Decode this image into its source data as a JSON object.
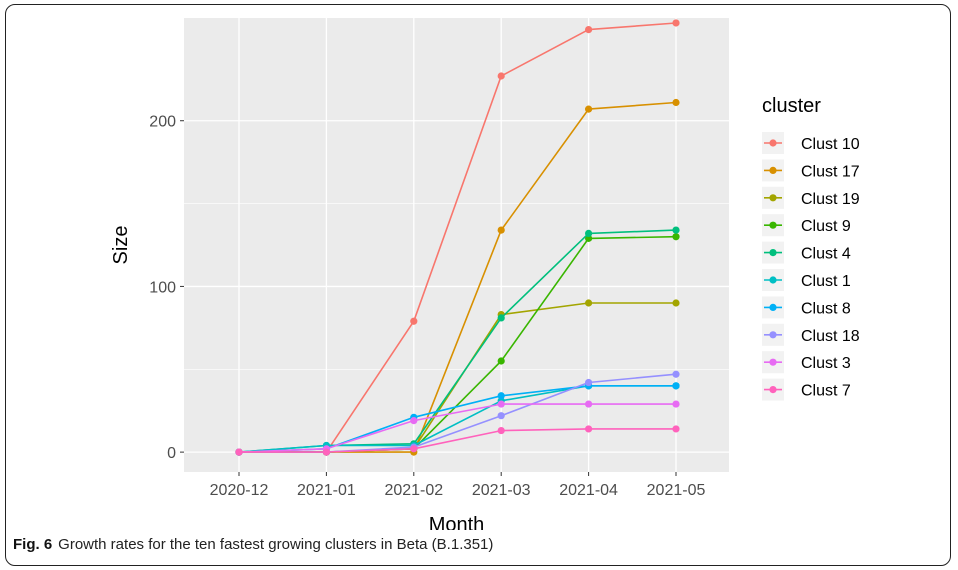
{
  "caption": {
    "label": "Fig. 6",
    "text": "Growth rates for the ten fastest growing clusters in Beta (B.1.351)"
  },
  "chart_data": {
    "type": "line",
    "title": "",
    "xlabel": "Month",
    "ylabel": "Size",
    "x": [
      "2020-12",
      "2021-01",
      "2021-02",
      "2021-03",
      "2021-04",
      "2021-05"
    ],
    "ylim": [
      -12,
      262
    ],
    "yticks": [
      0,
      100,
      200
    ],
    "grid": true,
    "legend": {
      "title": "cluster",
      "position": "right"
    },
    "series": [
      {
        "name": "Clust 10",
        "color": "#F8766D",
        "values": [
          0,
          0,
          79,
          227,
          255,
          259
        ]
      },
      {
        "name": "Clust 17",
        "color": "#D89000",
        "values": [
          0,
          0,
          0,
          134,
          207,
          211
        ]
      },
      {
        "name": "Clust 19",
        "color": "#A3A500",
        "values": [
          0,
          0,
          2,
          83,
          90,
          90
        ]
      },
      {
        "name": "Clust 9",
        "color": "#39B600",
        "values": [
          0,
          0,
          2,
          55,
          129,
          130
        ]
      },
      {
        "name": "Clust 4",
        "color": "#00BF7D",
        "values": [
          0,
          4,
          5,
          81,
          132,
          134
        ]
      },
      {
        "name": "Clust 1",
        "color": "#00BFC4",
        "values": [
          0,
          4,
          4,
          31,
          40,
          40
        ]
      },
      {
        "name": "Clust 8",
        "color": "#00B0F6",
        "values": [
          0,
          2,
          21,
          34,
          40,
          40
        ]
      },
      {
        "name": "Clust 18",
        "color": "#9590FF",
        "values": [
          0,
          0,
          3,
          22,
          42,
          47
        ]
      },
      {
        "name": "Clust 3",
        "color": "#E76BF3",
        "values": [
          0,
          2,
          19,
          29,
          29,
          29
        ]
      },
      {
        "name": "Clust 7",
        "color": "#FF62BC",
        "values": [
          0,
          0,
          2,
          13,
          14,
          14
        ]
      }
    ]
  }
}
